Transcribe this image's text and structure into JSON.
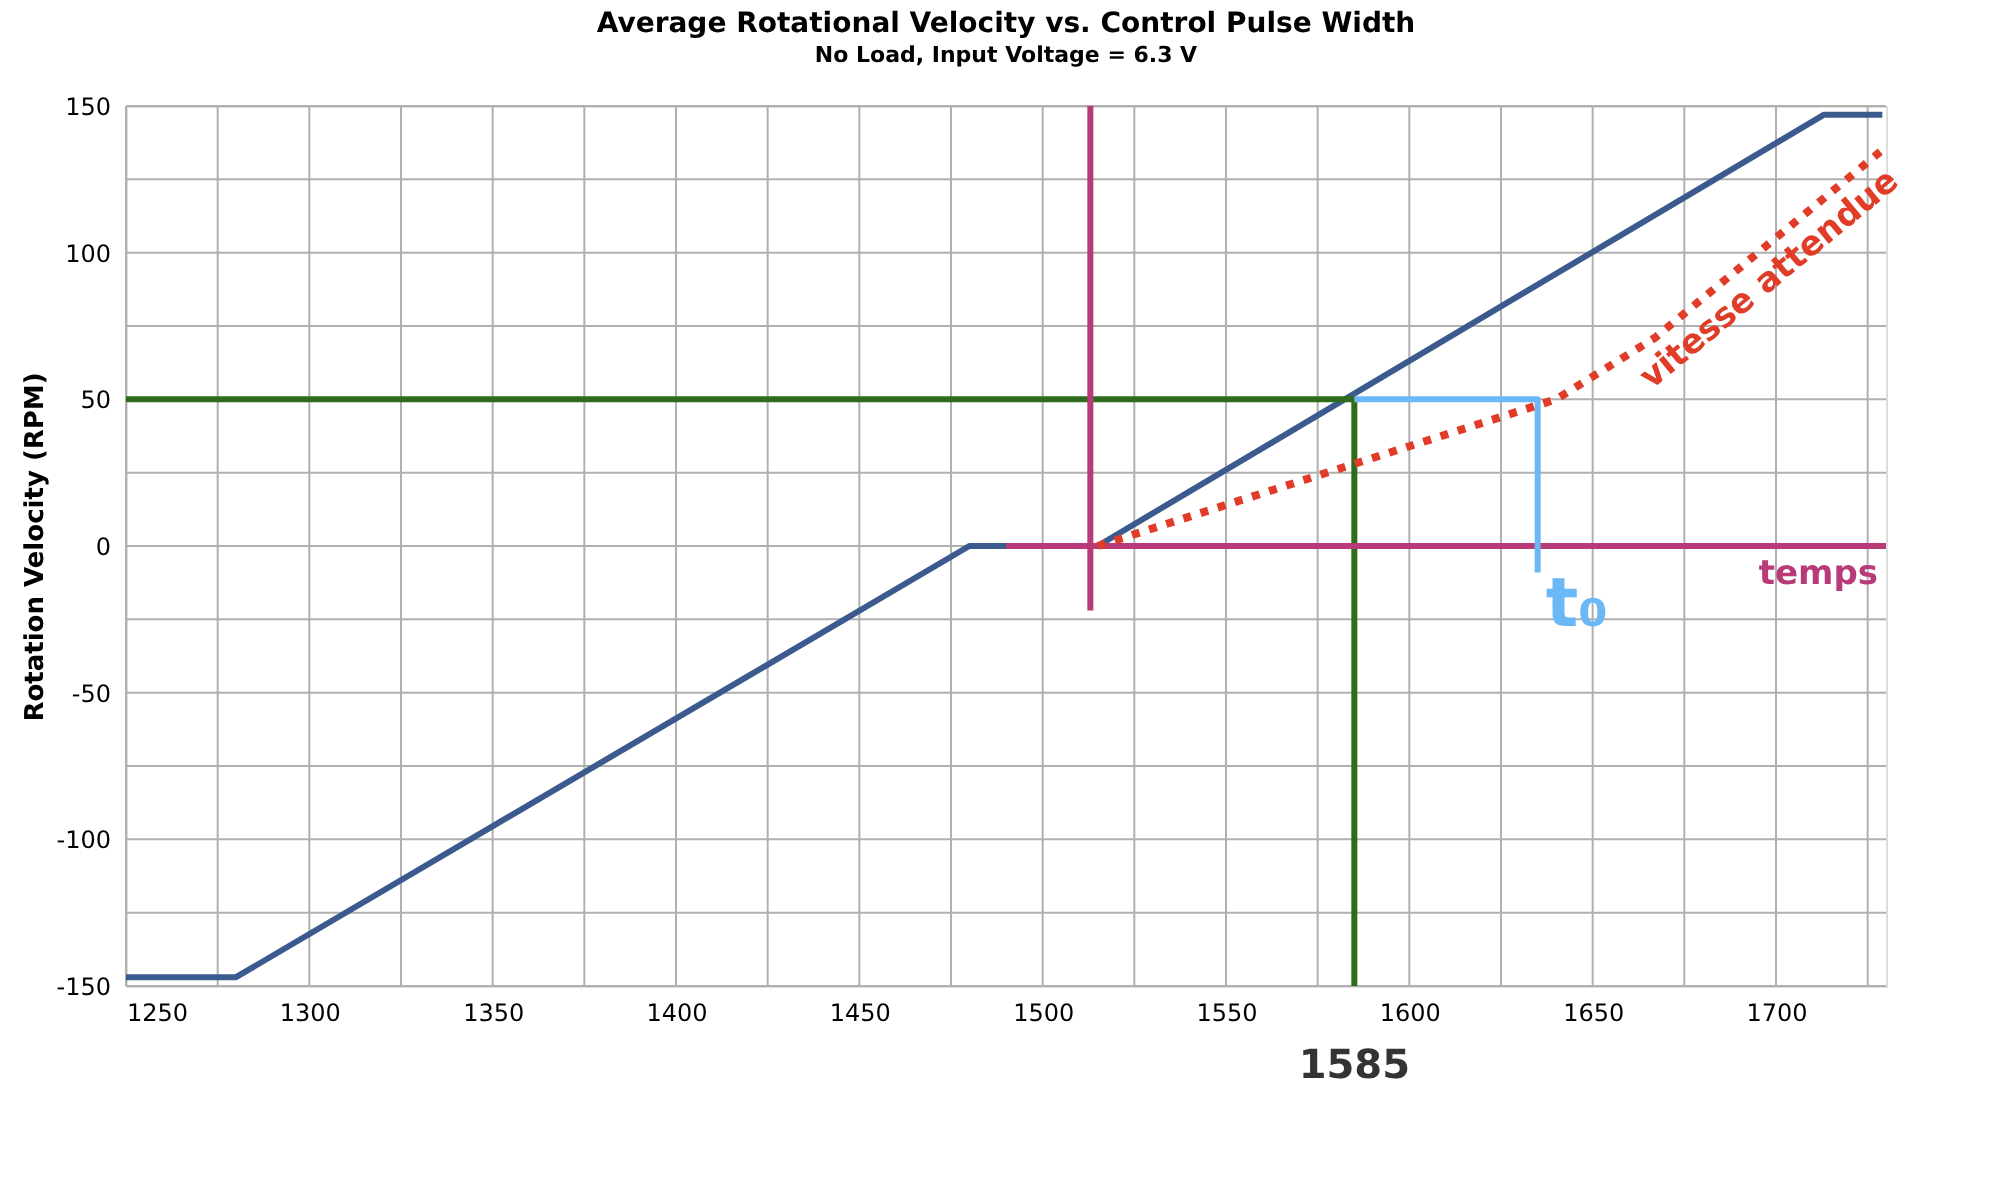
{
  "chart_data": {
    "type": "line",
    "title": "Average Rotational Velocity vs. Control Pulse Width",
    "subtitle": "No Load, Input Voltage = 6.3 V",
    "ylabel": "Rotation Velocity (RPM)",
    "xlim": [
      1250,
      1730
    ],
    "ylim": [
      -150,
      150
    ],
    "xticks": [
      1250,
      {
        "value": 1275,
        "label": null
      },
      1300,
      {
        "value": 1325,
        "label": null
      },
      1350,
      {
        "value": 1375,
        "label": null
      },
      1400,
      {
        "value": 1425,
        "label": null
      },
      1450,
      {
        "value": 1475,
        "label": null
      },
      1500,
      {
        "value": 1525,
        "label": null
      },
      1550,
      {
        "value": 1575,
        "label": null
      },
      1600,
      {
        "value": 1625,
        "label": null
      },
      1650,
      {
        "value": 1675,
        "label": null
      },
      1700,
      {
        "value": 1725,
        "label": null
      }
    ],
    "yticks": [
      -150,
      {
        "value": -125,
        "label": null
      },
      -100,
      {
        "value": -75,
        "label": null
      },
      -50,
      {
        "value": -25,
        "label": null
      },
      0,
      {
        "value": 25,
        "label": null
      },
      50,
      {
        "value": 75,
        "label": null
      },
      100,
      {
        "value": 125,
        "label": null
      },
      150
    ],
    "grid": true,
    "marker": "none",
    "series": [
      {
        "color": "#3b5b8f",
        "x": [
          1250,
          1280,
          1480,
          1515,
          1713,
          1729
        ],
        "values": [
          -147,
          -147,
          0,
          0,
          147,
          147
        ]
      },
      {
        "color": "#2f6b1c",
        "x": [
          1250,
          1585,
          1585
        ],
        "values": [
          50,
          50,
          -150
        ]
      },
      {
        "color": "#b83a78",
        "name": "temps",
        "x": [
          1490,
          1730
        ],
        "values": [
          0,
          0
        ]
      },
      {
        "color": "#b83a78",
        "x": [
          1513,
          1513
        ],
        "values": [
          -22,
          150
        ]
      },
      {
        "color": "#6ab8f5",
        "name": "t₀",
        "x": [
          1585,
          1635,
          1635
        ],
        "values": [
          50,
          50,
          -9
        ]
      },
      {
        "color": "#e03c28",
        "name": "vitesse attendue",
        "line_style": "dotted",
        "x": [
          1515,
          1640,
          1667,
          1729
        ],
        "values": [
          0,
          50,
          71,
          135
        ]
      }
    ],
    "annotations": [
      {
        "text": "1585",
        "x": 1585,
        "y": -150
      }
    ]
  }
}
